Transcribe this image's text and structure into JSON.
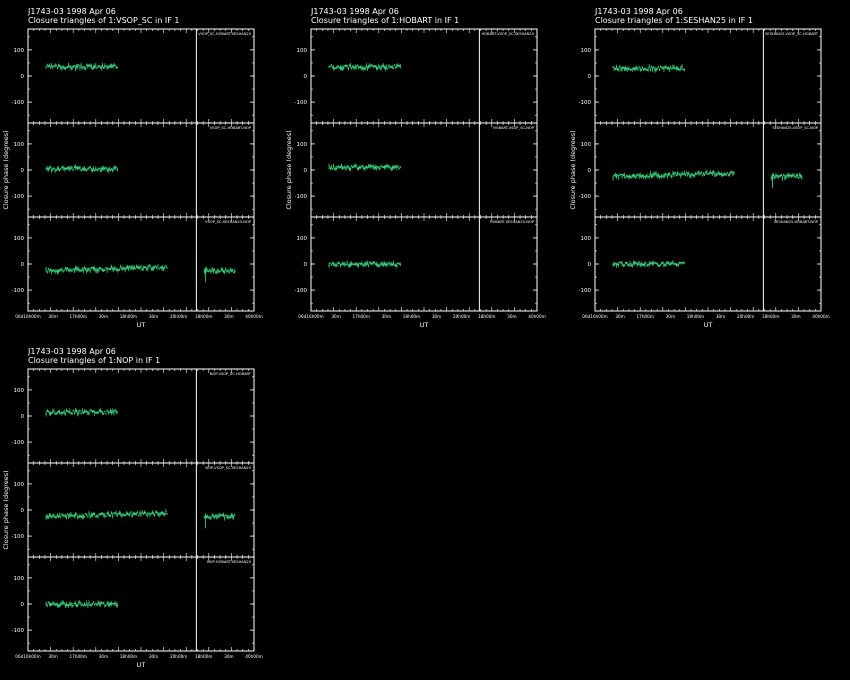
{
  "panels": [
    {
      "header_line1": "J1743-03   1998 Apr 06",
      "header_line2": "Closure triangles of 1:VSOP_SC in IF 1",
      "ylabel": "Closure phase  (degrees)",
      "xlabel": "UT",
      "subplots": [
        {
          "triangle_label": "VSOP_SC-HOBART-SESHAN25"
        },
        {
          "triangle_label": "VSOP_SC-HOBART-NOP"
        },
        {
          "triangle_label": "VSOP_SC-SESHAN25-NOP"
        }
      ]
    },
    {
      "header_line1": "J1743-03   1998 Apr 06",
      "header_line2": "Closure triangles of 1:HOBART in IF 1",
      "ylabel": "Closure phase  (degrees)",
      "xlabel": "UT",
      "subplots": [
        {
          "triangle_label": "HOBART-VSOP_SC-SESHAN25"
        },
        {
          "triangle_label": "HOBART-VSOP_SC-NOP"
        },
        {
          "triangle_label": "HOBART-SESHAN25-NOP"
        }
      ]
    },
    {
      "header_line1": "J1743-03   1998 Apr 06",
      "header_line2": "Closure triangles of 1:SESHAN25 in IF 1",
      "ylabel": "Closure phase  (degrees)",
      "xlabel": "UT",
      "subplots": [
        {
          "triangle_label": "SESHAN25-VSOP_SC-HOBART"
        },
        {
          "triangle_label": "SESHAN25-VSOP_SC-NOP"
        },
        {
          "triangle_label": "SESHAN25-HOBART-NOP"
        }
      ]
    },
    {
      "header_line1": "J1743-03   1998 Apr 06",
      "header_line2": "Closure triangles of 1:NOP in IF 1",
      "ylabel": "Closure phase  (degrees)",
      "xlabel": "UT",
      "subplots": [
        {
          "triangle_label": "NOP-VSOP_SC-HOBART"
        },
        {
          "triangle_label": "NOP-VSOP_SC-SESHAN25"
        },
        {
          "triangle_label": "NOP-HOBART-SESHAN25"
        }
      ]
    }
  ],
  "chart_data": {
    "type": "scatter",
    "ylim": [
      -180,
      180
    ],
    "yticks": [
      -100,
      0,
      100
    ],
    "xticks": [
      "06d16h00m",
      "30m",
      "17h00m",
      "30m",
      "18h00m",
      "30m",
      "20h00m",
      "18h00m",
      "30m",
      "40h00m"
    ],
    "grid": false,
    "series_color": "#3ddc84",
    "segments_doc": "Each subplot: list of continuous data segments with start/end fraction along the time axis and mean closure phase in degrees",
    "panel_segments": [
      [
        [
          {
            "x0": 0.08,
            "x1": 0.4,
            "mean": 35
          }
        ],
        [
          {
            "x0": 0.08,
            "x1": 0.4,
            "mean": 5
          }
        ],
        [
          {
            "x0": 0.08,
            "x1": 0.62,
            "mean": -25
          },
          {
            "x0": 0.78,
            "x1": 0.92,
            "mean": -25
          }
        ]
      ],
      [
        [
          {
            "x0": 0.08,
            "x1": 0.4,
            "mean": 35
          }
        ],
        [
          {
            "x0": 0.08,
            "x1": 0.4,
            "mean": 10
          }
        ],
        [
          {
            "x0": 0.08,
            "x1": 0.4,
            "mean": 0
          }
        ]
      ],
      [
        [
          {
            "x0": 0.08,
            "x1": 0.4,
            "mean": 30
          }
        ],
        [
          {
            "x0": 0.08,
            "x1": 0.62,
            "mean": -25
          },
          {
            "x0": 0.78,
            "x1": 0.92,
            "mean": -25
          }
        ],
        [
          {
            "x0": 0.08,
            "x1": 0.4,
            "mean": 0
          }
        ]
      ],
      [
        [
          {
            "x0": 0.08,
            "x1": 0.4,
            "mean": 15
          }
        ],
        [
          {
            "x0": 0.08,
            "x1": 0.62,
            "mean": -25
          },
          {
            "x0": 0.78,
            "x1": 0.92,
            "mean": -25
          }
        ],
        [
          {
            "x0": 0.08,
            "x1": 0.4,
            "mean": 0
          }
        ]
      ]
    ]
  }
}
